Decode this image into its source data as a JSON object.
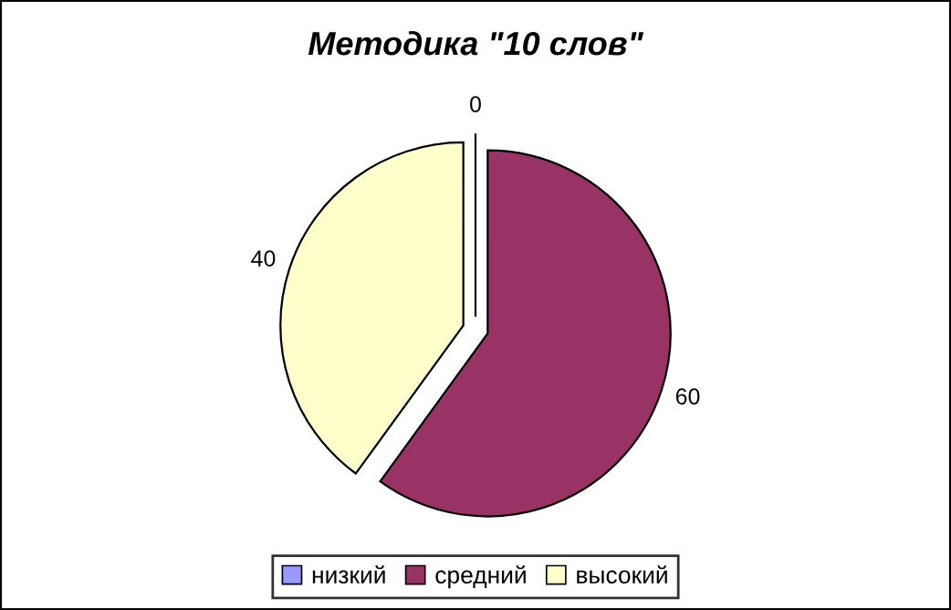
{
  "chart_data": {
    "type": "pie",
    "title": "Методика \"10 слов\"",
    "categories": [
      "низкий",
      "средний",
      "высокий"
    ],
    "values": [
      0,
      60,
      40
    ],
    "colors": [
      "#9999ff",
      "#993366",
      "#ffffcc"
    ],
    "value_labels": [
      "0",
      "60",
      "40"
    ],
    "legend": "bottom"
  }
}
